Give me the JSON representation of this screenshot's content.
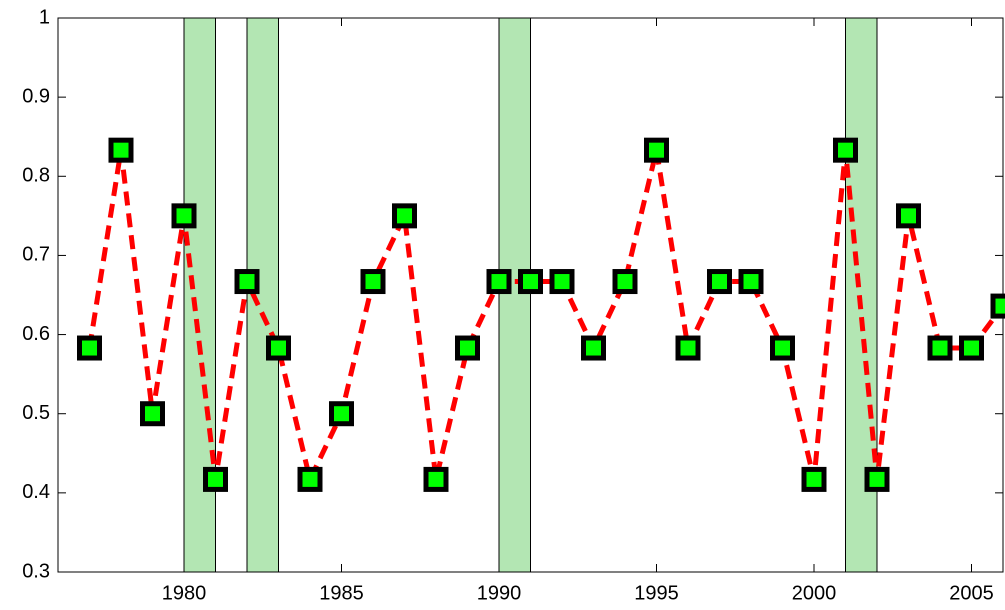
{
  "chart_data": {
    "type": "line",
    "x": [
      1977,
      1978,
      1979,
      1980,
      1981,
      1982,
      1983,
      1984,
      1985,
      1986,
      1987,
      1988,
      1989,
      1990,
      1991,
      1992,
      1993,
      1994,
      1995,
      1996,
      1997,
      1998,
      1999,
      2000,
      2001,
      2002,
      2003,
      2004,
      2005,
      2006
    ],
    "values": [
      0.583,
      0.833,
      0.5,
      0.75,
      0.417,
      0.667,
      0.583,
      0.417,
      0.5,
      0.667,
      0.75,
      0.417,
      0.583,
      0.667,
      0.667,
      0.667,
      0.583,
      0.667,
      0.833,
      0.583,
      0.667,
      0.667,
      0.583,
      0.417,
      0.833,
      0.417,
      0.75,
      0.583,
      0.583,
      0.636
    ],
    "color": "#ff0000",
    "marker_color": "#00ff00",
    "shaded_spans": [
      [
        1980,
        1981
      ],
      [
        1982,
        1983
      ],
      [
        1990,
        1991
      ],
      [
        2001,
        2002
      ]
    ],
    "shade_color": "#b3e6b3",
    "xlim": [
      1976,
      2006
    ],
    "xticks": [
      1980,
      1985,
      1990,
      1995,
      2000,
      2005
    ],
    "ylim": [
      0.3,
      1
    ],
    "yticks": [
      0.3,
      0.4,
      0.5,
      0.6,
      0.7,
      0.8,
      0.9,
      1
    ],
    "grid": false
  }
}
